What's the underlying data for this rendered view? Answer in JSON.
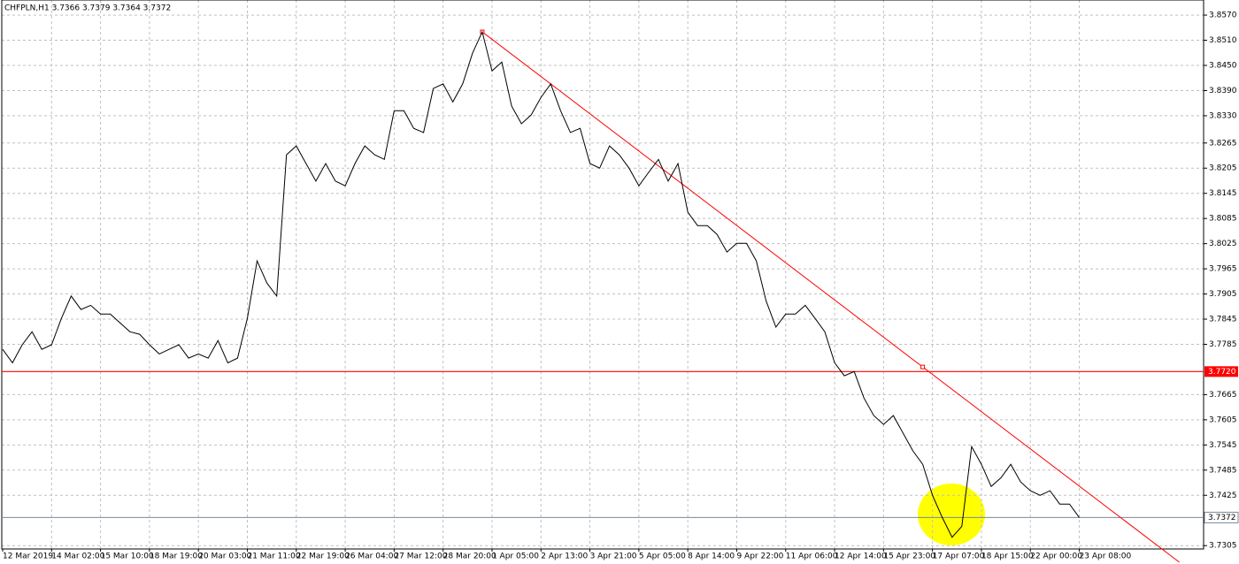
{
  "chart_data": {
    "type": "line",
    "title": "CHFPLN,H1  3.7366 3.7379 3.7364 3.7372",
    "categories": [
      "12 Mar 2019",
      null,
      null,
      null,
      null,
      "14 Mar 02:00",
      null,
      null,
      null,
      null,
      "15 Mar 10:00",
      null,
      null,
      null,
      null,
      "18 Mar 19:00",
      null,
      null,
      null,
      null,
      "20 Mar 03:00",
      null,
      null,
      null,
      null,
      "21 Mar 11:00",
      null,
      null,
      null,
      null,
      "22 Mar 19:00",
      null,
      null,
      null,
      null,
      "26 Mar 04:00",
      null,
      null,
      null,
      null,
      "27 Mar 12:00",
      null,
      null,
      null,
      null,
      "28 Mar 20:00",
      null,
      null,
      null,
      null,
      "1 Apr 05:00",
      null,
      null,
      null,
      null,
      "2 Apr 13:00",
      null,
      null,
      null,
      null,
      "3 Apr 21:00",
      null,
      null,
      null,
      null,
      "5 Apr 05:00",
      null,
      null,
      null,
      null,
      "8 Apr 14:00",
      null,
      null,
      null,
      null,
      "9 Apr 22:00",
      null,
      null,
      null,
      null,
      "11 Apr 06:00",
      null,
      null,
      null,
      null,
      "12 Apr 14:00",
      null,
      null,
      null,
      null,
      "15 Apr 23:00",
      null,
      null,
      null,
      null,
      "17 Apr 07:00",
      null,
      null,
      null,
      null,
      "18 Apr 15:00",
      null,
      null,
      null,
      null,
      "22 Apr 00:00",
      null,
      null,
      null,
      null,
      "23 Apr 08:00",
      null,
      null,
      null,
      null,
      null,
      null,
      null,
      null,
      null,
      null,
      null,
      null
    ],
    "series": [
      {
        "name": "CHFPLN,H1",
        "color": "#000000",
        "values": [
          3.7773,
          3.7741,
          3.7784,
          3.7815,
          3.7773,
          3.7784,
          3.7847,
          3.79,
          3.7868,
          3.7878,
          3.7857,
          3.7857,
          3.7836,
          3.7815,
          3.7809,
          3.7784,
          3.7762,
          3.7773,
          3.7784,
          3.7752,
          3.7762,
          3.7752,
          3.7794,
          3.7741,
          3.7752,
          3.7847,
          3.7984,
          3.7931,
          3.79,
          3.8237,
          3.8258,
          3.8216,
          3.8174,
          3.8216,
          3.8174,
          3.8163,
          3.8216,
          3.8258,
          3.8237,
          3.8226,
          3.8342,
          3.8342,
          3.83,
          3.829,
          3.8395,
          3.8406,
          3.8363,
          3.8406,
          3.8479,
          3.853,
          3.8437,
          3.8458,
          3.8353,
          3.8311,
          3.8332,
          3.8374,
          3.8406,
          3.8342,
          3.829,
          3.83,
          3.8216,
          3.8205,
          3.8258,
          3.8237,
          3.8205,
          3.8163,
          3.8195,
          3.8226,
          3.8174,
          3.8216,
          3.81,
          3.8068,
          3.8068,
          3.8047,
          3.8005,
          3.8026,
          3.8026,
          3.7984,
          3.7889,
          3.7826,
          3.7857,
          3.7857,
          3.7878,
          3.7847,
          3.7815,
          3.7741,
          3.771,
          3.772,
          3.7657,
          3.7615,
          3.7594,
          3.7615,
          3.7573,
          3.7531,
          3.7499,
          3.7425,
          3.7372,
          3.7325,
          3.7351,
          3.7541,
          3.7499,
          3.7446,
          3.7467,
          3.7499,
          3.7457,
          3.7436,
          3.7425,
          3.7436,
          3.7404,
          3.7404,
          3.7372,
          null,
          null,
          null,
          null,
          null,
          null,
          null,
          null,
          null,
          null,
          null,
          null
        ]
      }
    ],
    "ylim": [
      3.7297,
      3.8606
    ],
    "yticks": [
      {
        "value": 3.857,
        "label": "3.8570"
      },
      {
        "value": 3.851,
        "label": "3.8510"
      },
      {
        "value": 3.845,
        "label": "3.8450"
      },
      {
        "value": 3.839,
        "label": "3.8390"
      },
      {
        "value": 3.833,
        "label": "3.8330"
      },
      3.8265,
      3.8205,
      3.8145,
      3.8085,
      3.8025,
      3.7965,
      3.7905,
      3.7845,
      3.7785,
      3.7665,
      3.7605,
      3.7545,
      3.7485,
      3.7425,
      3.7305
    ],
    "grid": true,
    "trend_line": {
      "x": [
        49,
        94
      ],
      "values": [
        3.853,
        3.7731
      ],
      "color": "#ff0000"
    },
    "levels": [
      {
        "value": 3.772,
        "label": "3.7720",
        "color": "#ff0000"
      }
    ],
    "current_price": {
      "value": 3.7372,
      "label": "3.7372",
      "color": "#778899"
    }
  }
}
